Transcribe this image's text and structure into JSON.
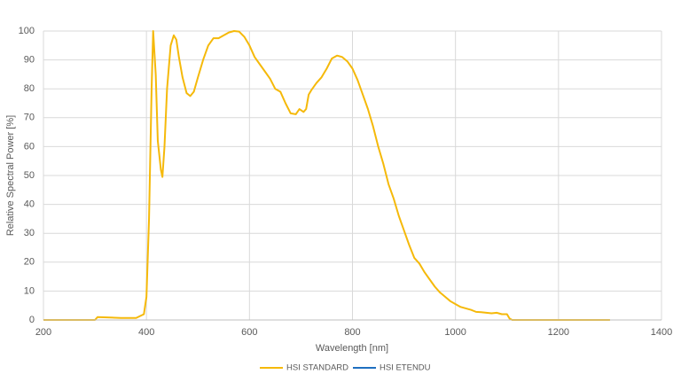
{
  "chart_data": {
    "type": "line",
    "x_label": "Wavelength [nm]",
    "y_label": "Relative Spectral Power [%]",
    "x": [
      200,
      300,
      305,
      350,
      380,
      395,
      400,
      405,
      410,
      413,
      418,
      422,
      428,
      431,
      435,
      440,
      447,
      453,
      458,
      463,
      470,
      478,
      485,
      492,
      500,
      510,
      520,
      530,
      540,
      550,
      560,
      570,
      580,
      590,
      600,
      610,
      620,
      630,
      640,
      650,
      660,
      670,
      680,
      690,
      697,
      705,
      710,
      715,
      720,
      730,
      740,
      750,
      760,
      770,
      780,
      790,
      800,
      810,
      820,
      830,
      840,
      850,
      860,
      870,
      880,
      890,
      900,
      910,
      920,
      930,
      940,
      950,
      960,
      970,
      980,
      990,
      1000,
      1010,
      1020,
      1030,
      1040,
      1050,
      1060,
      1070,
      1080,
      1090,
      1100,
      1105,
      1110,
      1200,
      1300
    ],
    "series": [
      {
        "name": "HSI STANDARD",
        "color": "#f5b90a",
        "values": [
          0,
          0,
          1,
          0.7,
          0.7,
          2,
          8,
          35,
          80,
          100,
          85,
          62,
          52,
          49.5,
          60,
          80,
          95,
          98.5,
          97,
          91,
          84,
          78.5,
          77.5,
          79,
          84,
          90,
          95,
          97.5,
          97.5,
          98.5,
          99.5,
          100,
          99.8,
          98,
          95,
          91,
          88.5,
          86,
          83.5,
          80,
          79,
          75,
          71.5,
          71.2,
          73,
          72,
          73,
          78,
          79.5,
          82,
          84,
          87,
          90.5,
          91.5,
          91,
          89.5,
          87,
          83,
          78,
          73,
          67,
          60,
          54,
          47,
          42,
          36,
          31,
          26,
          21.5,
          19.5,
          16.5,
          14,
          11.5,
          9.5,
          8,
          6.5,
          5.5,
          4.5,
          4,
          3.5,
          2.8,
          2.7,
          2.5,
          2.3,
          2.5,
          2,
          2,
          0.5,
          0,
          0,
          0
        ]
      },
      {
        "name": "HSI ETENDU",
        "color": "#1f6fc0",
        "values": [
          null,
          null,
          null,
          null,
          null,
          null,
          null,
          null,
          null,
          null,
          null,
          null,
          null,
          null,
          null,
          null,
          null,
          null,
          null,
          null,
          null,
          null,
          null,
          null,
          null,
          null,
          null,
          null,
          null,
          null,
          null,
          null,
          null,
          null,
          null,
          null,
          null,
          null,
          null,
          null,
          null,
          null,
          null,
          null,
          null,
          null,
          null,
          null,
          null,
          null,
          null,
          null,
          null,
          null,
          null,
          null,
          null,
          null,
          null,
          null,
          null,
          null,
          null,
          null,
          null,
          null,
          null,
          null,
          null,
          null,
          null,
          null,
          null,
          null,
          null,
          null,
          null,
          null,
          null,
          null,
          null,
          null,
          null,
          null,
          null,
          null,
          null,
          null,
          null,
          null,
          null
        ]
      }
    ],
    "xlim": [
      200,
      1400
    ],
    "xticks": [
      200,
      400,
      600,
      800,
      1000,
      1200,
      1400
    ],
    "ylim": [
      0,
      100
    ],
    "yticks": [
      0,
      10,
      20,
      30,
      40,
      50,
      60,
      70,
      80,
      90,
      100
    ],
    "grid": true,
    "legend": "bottom"
  }
}
